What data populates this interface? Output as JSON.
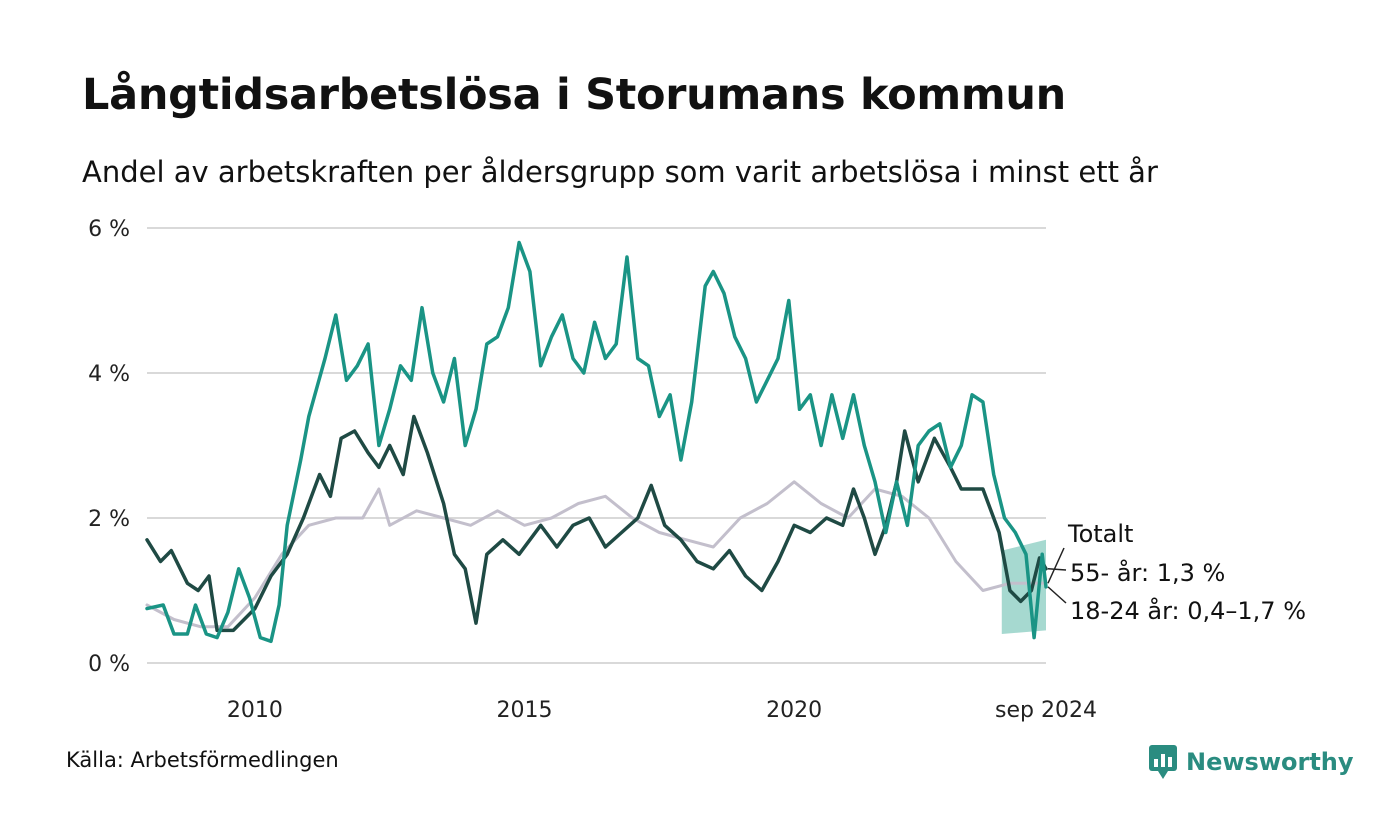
{
  "title": "Långtidsarbetslösa i Storumans kommun",
  "subtitle": "Andel av arbetskraften per åldersgrupp som varit arbetslösa i minst ett år",
  "source": "Källa: Arbetsförmedlingen",
  "brand": "Newsworthy",
  "colors": {
    "total": "#c3bfcc",
    "age55": "#1f4a44",
    "age18_24": "#1a9485",
    "band": "#97d2c8",
    "grid": "#d9d9d9",
    "brand": "#2a8c80"
  },
  "labels": {
    "total": "Totalt",
    "age55": "55- år: 1,3 %",
    "age18_24": "18-24 år: 0,4–1,7 %"
  },
  "chart_data": {
    "type": "line",
    "x_unit": "year",
    "xlim": [
      2008.0,
      2024.67
    ],
    "ylim": [
      0,
      6
    ],
    "yticks": [
      0,
      2,
      4,
      6
    ],
    "ytick_labels": [
      "0 %",
      "2 %",
      "4 %",
      "6 %"
    ],
    "xticks": [
      2010,
      2015,
      2020,
      2024.67
    ],
    "xtick_labels": [
      "2010",
      "2015",
      "2020",
      "sep 2024"
    ],
    "grid": true,
    "series": [
      {
        "name": "Totalt",
        "color_key": "total",
        "points": [
          [
            2008.0,
            0.8
          ],
          [
            2008.5,
            0.6
          ],
          [
            2009.0,
            0.5
          ],
          [
            2009.5,
            0.5
          ],
          [
            2010.0,
            0.9
          ],
          [
            2010.5,
            1.5
          ],
          [
            2011.0,
            1.9
          ],
          [
            2011.5,
            2.0
          ],
          [
            2012.0,
            2.0
          ],
          [
            2012.3,
            2.4
          ],
          [
            2012.5,
            1.9
          ],
          [
            2013.0,
            2.1
          ],
          [
            2013.5,
            2.0
          ],
          [
            2014.0,
            1.9
          ],
          [
            2014.5,
            2.1
          ],
          [
            2015.0,
            1.9
          ],
          [
            2015.5,
            2.0
          ],
          [
            2016.0,
            2.2
          ],
          [
            2016.5,
            2.3
          ],
          [
            2017.0,
            2.0
          ],
          [
            2017.5,
            1.8
          ],
          [
            2018.0,
            1.7
          ],
          [
            2018.5,
            1.6
          ],
          [
            2019.0,
            2.0
          ],
          [
            2019.5,
            2.2
          ],
          [
            2020.0,
            2.5
          ],
          [
            2020.5,
            2.2
          ],
          [
            2021.0,
            2.0
          ],
          [
            2021.5,
            2.4
          ],
          [
            2022.0,
            2.3
          ],
          [
            2022.5,
            2.0
          ],
          [
            2023.0,
            1.4
          ],
          [
            2023.5,
            1.0
          ],
          [
            2024.0,
            1.1
          ],
          [
            2024.67,
            1.1
          ]
        ]
      },
      {
        "name": "55- år",
        "color_key": "age55",
        "points": [
          [
            2008.0,
            1.7
          ],
          [
            2008.25,
            1.4
          ],
          [
            2008.45,
            1.55
          ],
          [
            2008.75,
            1.1
          ],
          [
            2008.95,
            1.0
          ],
          [
            2009.15,
            1.2
          ],
          [
            2009.3,
            0.45
          ],
          [
            2009.6,
            0.45
          ],
          [
            2009.8,
            0.6
          ],
          [
            2010.0,
            0.75
          ],
          [
            2010.3,
            1.2
          ],
          [
            2010.6,
            1.5
          ],
          [
            2010.9,
            2.0
          ],
          [
            2011.2,
            2.6
          ],
          [
            2011.4,
            2.3
          ],
          [
            2011.6,
            3.1
          ],
          [
            2011.85,
            3.2
          ],
          [
            2012.1,
            2.9
          ],
          [
            2012.3,
            2.7
          ],
          [
            2012.5,
            3.0
          ],
          [
            2012.75,
            2.6
          ],
          [
            2012.95,
            3.4
          ],
          [
            2013.2,
            2.9
          ],
          [
            2013.5,
            2.2
          ],
          [
            2013.7,
            1.5
          ],
          [
            2013.9,
            1.3
          ],
          [
            2014.1,
            0.55
          ],
          [
            2014.3,
            1.5
          ],
          [
            2014.6,
            1.7
          ],
          [
            2014.9,
            1.5
          ],
          [
            2015.3,
            1.9
          ],
          [
            2015.6,
            1.6
          ],
          [
            2015.9,
            1.9
          ],
          [
            2016.2,
            2.0
          ],
          [
            2016.5,
            1.6
          ],
          [
            2016.8,
            1.8
          ],
          [
            2017.1,
            2.0
          ],
          [
            2017.35,
            2.45
          ],
          [
            2017.6,
            1.9
          ],
          [
            2017.9,
            1.7
          ],
          [
            2018.2,
            1.4
          ],
          [
            2018.5,
            1.3
          ],
          [
            2018.8,
            1.55
          ],
          [
            2019.1,
            1.2
          ],
          [
            2019.4,
            1.0
          ],
          [
            2019.7,
            1.4
          ],
          [
            2020.0,
            1.9
          ],
          [
            2020.3,
            1.8
          ],
          [
            2020.6,
            2.0
          ],
          [
            2020.9,
            1.9
          ],
          [
            2021.1,
            2.4
          ],
          [
            2021.3,
            2.0
          ],
          [
            2021.5,
            1.5
          ],
          [
            2021.7,
            1.9
          ],
          [
            2021.9,
            2.5
          ],
          [
            2022.05,
            3.2
          ],
          [
            2022.3,
            2.5
          ],
          [
            2022.6,
            3.1
          ],
          [
            2022.9,
            2.7
          ],
          [
            2023.1,
            2.4
          ],
          [
            2023.5,
            2.4
          ],
          [
            2023.8,
            1.8
          ],
          [
            2024.0,
            1.0
          ],
          [
            2024.2,
            0.85
          ],
          [
            2024.4,
            1.0
          ],
          [
            2024.55,
            1.45
          ],
          [
            2024.67,
            1.3
          ]
        ]
      },
      {
        "name": "18-24 år",
        "color_key": "age18_24",
        "points": [
          [
            2008.0,
            0.75
          ],
          [
            2008.3,
            0.8
          ],
          [
            2008.5,
            0.4
          ],
          [
            2008.75,
            0.4
          ],
          [
            2008.9,
            0.8
          ],
          [
            2009.1,
            0.4
          ],
          [
            2009.3,
            0.35
          ],
          [
            2009.5,
            0.7
          ],
          [
            2009.7,
            1.3
          ],
          [
            2009.9,
            0.9
          ],
          [
            2010.1,
            0.35
          ],
          [
            2010.3,
            0.3
          ],
          [
            2010.45,
            0.8
          ],
          [
            2010.6,
            1.9
          ],
          [
            2010.85,
            2.8
          ],
          [
            2011.0,
            3.4
          ],
          [
            2011.3,
            4.2
          ],
          [
            2011.5,
            4.8
          ],
          [
            2011.7,
            3.9
          ],
          [
            2011.9,
            4.1
          ],
          [
            2012.1,
            4.4
          ],
          [
            2012.3,
            3.0
          ],
          [
            2012.5,
            3.5
          ],
          [
            2012.7,
            4.1
          ],
          [
            2012.9,
            3.9
          ],
          [
            2013.1,
            4.9
          ],
          [
            2013.3,
            4.0
          ],
          [
            2013.5,
            3.6
          ],
          [
            2013.7,
            4.2
          ],
          [
            2013.9,
            3.0
          ],
          [
            2014.1,
            3.5
          ],
          [
            2014.3,
            4.4
          ],
          [
            2014.5,
            4.5
          ],
          [
            2014.7,
            4.9
          ],
          [
            2014.9,
            5.8
          ],
          [
            2015.1,
            5.4
          ],
          [
            2015.3,
            4.1
          ],
          [
            2015.5,
            4.5
          ],
          [
            2015.7,
            4.8
          ],
          [
            2015.9,
            4.2
          ],
          [
            2016.1,
            4.0
          ],
          [
            2016.3,
            4.7
          ],
          [
            2016.5,
            4.2
          ],
          [
            2016.7,
            4.4
          ],
          [
            2016.9,
            5.6
          ],
          [
            2017.1,
            4.2
          ],
          [
            2017.3,
            4.1
          ],
          [
            2017.5,
            3.4
          ],
          [
            2017.7,
            3.7
          ],
          [
            2017.9,
            2.8
          ],
          [
            2018.1,
            3.6
          ],
          [
            2018.35,
            5.2
          ],
          [
            2018.5,
            5.4
          ],
          [
            2018.7,
            5.1
          ],
          [
            2018.9,
            4.5
          ],
          [
            2019.1,
            4.2
          ],
          [
            2019.3,
            3.6
          ],
          [
            2019.5,
            3.9
          ],
          [
            2019.7,
            4.2
          ],
          [
            2019.9,
            5.0
          ],
          [
            2020.1,
            3.5
          ],
          [
            2020.3,
            3.7
          ],
          [
            2020.5,
            3.0
          ],
          [
            2020.7,
            3.7
          ],
          [
            2020.9,
            3.1
          ],
          [
            2021.1,
            3.7
          ],
          [
            2021.3,
            3.0
          ],
          [
            2021.5,
            2.5
          ],
          [
            2021.7,
            1.8
          ],
          [
            2021.9,
            2.5
          ],
          [
            2022.1,
            1.9
          ],
          [
            2022.3,
            3.0
          ],
          [
            2022.5,
            3.2
          ],
          [
            2022.7,
            3.3
          ],
          [
            2022.9,
            2.7
          ],
          [
            2023.1,
            3.0
          ],
          [
            2023.3,
            3.7
          ],
          [
            2023.5,
            3.6
          ],
          [
            2023.7,
            2.6
          ],
          [
            2023.9,
            2.0
          ],
          [
            2024.1,
            1.8
          ],
          [
            2024.3,
            1.5
          ],
          [
            2024.45,
            0.35
          ],
          [
            2024.6,
            1.5
          ],
          [
            2024.67,
            1.05
          ]
        ]
      }
    ],
    "forecast_band": {
      "name": "18-24 år",
      "x": [
        2023.85,
        2024.67
      ],
      "lower": [
        0.4,
        0.45
      ],
      "upper": [
        1.55,
        1.7
      ]
    }
  }
}
